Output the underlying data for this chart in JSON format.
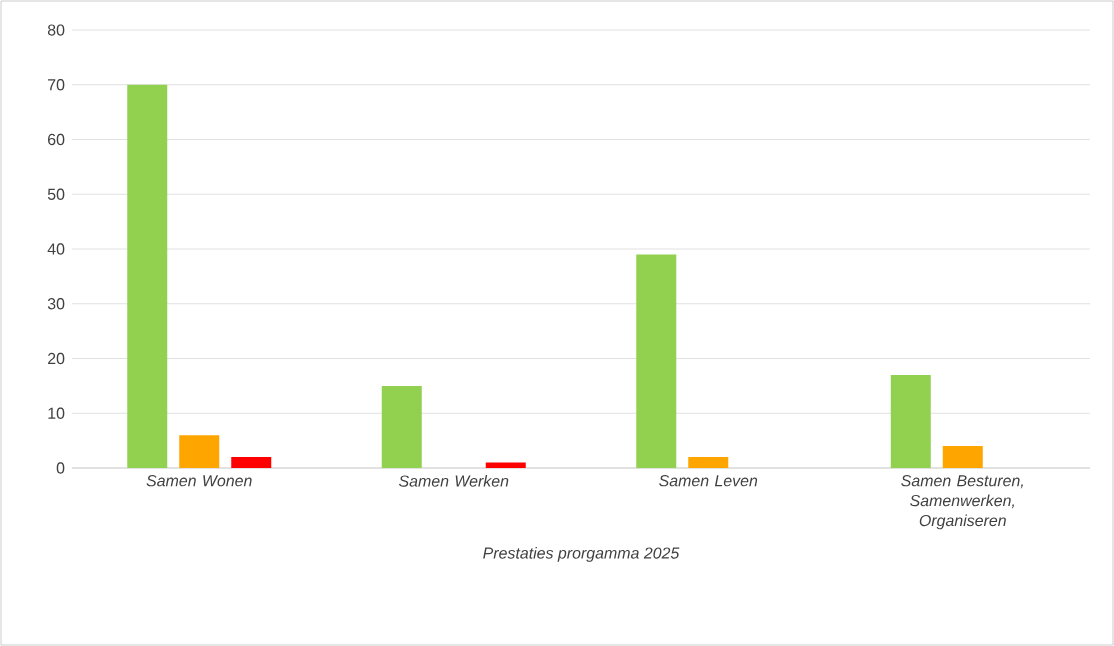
{
  "chart_data": {
    "type": "bar",
    "xlabel": "Prestaties prorgamma  2025",
    "categories": [
      "Samen Wonen",
      "Samen Werken",
      "Samen Leven",
      "Samen Besturen, Samenwerken, Organiseren"
    ],
    "series": [
      {
        "color": "#92d050",
        "values": [
          70,
          15,
          39,
          17
        ]
      },
      {
        "color": "#ffa500",
        "values": [
          6,
          0,
          2,
          4
        ]
      },
      {
        "color": "#ff0000",
        "values": [
          2,
          1,
          0,
          0
        ]
      }
    ],
    "ylim": [
      0,
      80
    ],
    "yticks": [
      0,
      10,
      20,
      30,
      40,
      50,
      60,
      70,
      80
    ],
    "grid": "y"
  }
}
